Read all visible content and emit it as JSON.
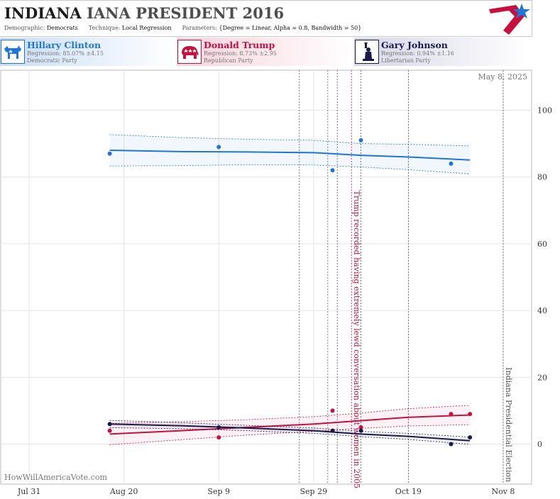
{
  "header": {
    "title_state": "INDIANA",
    "title_rest": "IANA PRESIDENT 2016",
    "demographic_label": "Demographic:",
    "demographic_value": "Democrats",
    "technique_label": "Technique:",
    "technique_value": "Local Regression",
    "parameters_label": "Parameters:",
    "parameters_value": "{Degree = Linear, Alpha = 0.8, Bandwidth = 50}"
  },
  "candidates": {
    "dem": {
      "name": "Hillary Clinton",
      "regression": "Regression: 85.07% ±4.15",
      "party": "Democratic Party",
      "color": "#1f75d8",
      "icon": "donkey-icon"
    },
    "rep": {
      "name": "Donald Trump",
      "regression": "Regression: 8.73% ±2.95",
      "party": "Republican Party",
      "color": "#c8103e",
      "icon": "elephant-icon"
    },
    "lib": {
      "name": "Gary Johnson",
      "regression": "Regression: 0.94% ±1.16",
      "party": "Libertarian Party",
      "color": "#1a1a4a",
      "icon": "statue-of-liberty-icon"
    }
  },
  "chart_data": {
    "type": "line",
    "date_label": "May 8, 2025",
    "watermark": "HowWillAmericaVote.com",
    "x_ticks": [
      "2016-07-31",
      "2016-08-20",
      "2016-09-09",
      "2016-09-29",
      "2016-10-19",
      "2016-11-08"
    ],
    "x_tick_labels": [
      "Jul 31",
      "Aug 20",
      "Sep 9",
      "Sep 29",
      "Oct 19",
      "Nov 8"
    ],
    "xlim": [
      "2016-07-25",
      "2016-11-14"
    ],
    "ylim": [
      -12,
      112
    ],
    "y_ticks": [
      0,
      20,
      40,
      60,
      80,
      100
    ],
    "grid": true,
    "series": [
      {
        "name": "Hillary Clinton",
        "key": "dem",
        "color": "#1f75d8",
        "points": [
          [
            "2016-08-17",
            87
          ],
          [
            "2016-09-09",
            89
          ],
          [
            "2016-10-03",
            82
          ],
          [
            "2016-10-09",
            91
          ],
          [
            "2016-10-28",
            84
          ]
        ],
        "trend": [
          [
            "2016-08-17",
            88
          ],
          [
            "2016-09-01",
            87.6
          ],
          [
            "2016-09-15",
            87.5
          ],
          [
            "2016-09-29",
            87.3
          ],
          [
            "2016-10-09",
            86.5
          ],
          [
            "2016-10-19",
            86
          ],
          [
            "2016-11-01",
            85.1
          ]
        ],
        "band": [
          4.7,
          4.2,
          3.8,
          3.7,
          3.5,
          3.8,
          4.2
        ]
      },
      {
        "name": "Donald Trump",
        "key": "rep",
        "color": "#c8103e",
        "points": [
          [
            "2016-08-17",
            4
          ],
          [
            "2016-09-09",
            2
          ],
          [
            "2016-10-03",
            10
          ],
          [
            "2016-10-09",
            5
          ],
          [
            "2016-10-28",
            9
          ],
          [
            "2016-11-01",
            9
          ]
        ],
        "trend": [
          [
            "2016-08-17",
            3
          ],
          [
            "2016-09-01",
            4
          ],
          [
            "2016-09-15",
            5
          ],
          [
            "2016-09-29",
            6
          ],
          [
            "2016-10-09",
            7
          ],
          [
            "2016-10-19",
            8
          ],
          [
            "2016-11-01",
            8.7
          ]
        ],
        "band": [
          3.2,
          2.7,
          2.3,
          2.2,
          2.3,
          2.6,
          2.9
        ]
      },
      {
        "name": "Gary Johnson",
        "key": "lib",
        "color": "#1a1a4a",
        "points": [
          [
            "2016-08-17",
            6
          ],
          [
            "2016-09-09",
            5
          ],
          [
            "2016-10-03",
            4
          ],
          [
            "2016-10-09",
            4
          ],
          [
            "2016-10-28",
            0
          ],
          [
            "2016-11-01",
            2
          ]
        ],
        "trend": [
          [
            "2016-08-17",
            6
          ],
          [
            "2016-09-01",
            5.5
          ],
          [
            "2016-09-15",
            4.8
          ],
          [
            "2016-09-29",
            4
          ],
          [
            "2016-10-09",
            3
          ],
          [
            "2016-10-19",
            2.3
          ],
          [
            "2016-11-01",
            1
          ]
        ],
        "band": [
          1.1,
          0.9,
          0.8,
          0.8,
          0.8,
          0.9,
          1.1
        ]
      }
    ],
    "vlines": [
      {
        "date": "2016-09-26",
        "label": "",
        "color": "#555555"
      },
      {
        "date": "2016-10-02",
        "label": "",
        "color": "#555555"
      },
      {
        "date": "2016-10-04",
        "label": "",
        "color": "#555555"
      },
      {
        "date": "2016-10-07",
        "label": "Trump recorded having extremely lewd conversation about women in 2005",
        "color": "#c8103e"
      },
      {
        "date": "2016-10-09",
        "label": "",
        "color": "#555555"
      },
      {
        "date": "2016-10-19",
        "label": "",
        "color": "#555555"
      },
      {
        "date": "2016-11-08",
        "label": "Indiana Presidential Election",
        "color": "#555555"
      }
    ]
  }
}
